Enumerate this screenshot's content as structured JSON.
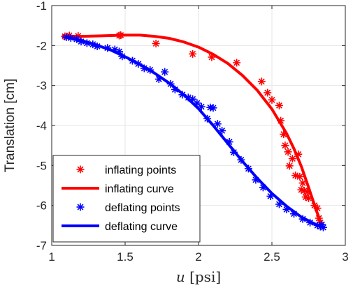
{
  "chart_data": {
    "type": "scatter",
    "xlabel_var": "u",
    "xlabel_unit": "[psi]",
    "ylabel": "Translation [cm]",
    "xlim": [
      1,
      3
    ],
    "ylim": [
      -7,
      -1
    ],
    "xticks": [
      1,
      1.5,
      2,
      2.5,
      3
    ],
    "yticks": [
      -1,
      -2,
      -3,
      -4,
      -5,
      -6,
      -7
    ],
    "xtick_labels": [
      "1",
      "1.5",
      "2",
      "2.5",
      "3"
    ],
    "ytick_labels": [
      "-1",
      "-2",
      "-3",
      "-4",
      "-5",
      "-6",
      "-7"
    ],
    "grid": true,
    "legend_position": "bottom-left",
    "series": [
      {
        "name": "inflating points",
        "kind": "markers",
        "marker": "asterisk",
        "color": "#ff0000",
        "x": [
          1.09,
          1.12,
          1.18,
          1.46,
          1.47,
          1.71,
          1.96,
          2.09,
          2.26,
          2.43,
          2.47,
          2.5,
          2.55,
          2.56,
          2.58,
          2.59,
          2.61,
          2.62,
          2.64,
          2.66,
          2.68,
          2.69,
          2.7,
          2.71,
          2.72,
          2.73,
          2.74,
          2.75,
          2.79,
          2.81,
          2.82,
          2.83
        ],
        "y": [
          -1.77,
          -1.75,
          -1.76,
          -1.75,
          -1.74,
          -1.95,
          -2.21,
          -2.29,
          -2.43,
          -2.9,
          -3.18,
          -3.36,
          -3.5,
          -3.88,
          -4.22,
          -4.5,
          -4.66,
          -5.01,
          -4.83,
          -5.25,
          -4.72,
          -5.28,
          -5.61,
          -5.44,
          -5.63,
          -5.79,
          -5.66,
          -5.82,
          -6.0,
          -6.07,
          -6.32,
          -6.43
        ]
      },
      {
        "name": "inflating curve",
        "kind": "line",
        "color": "#ff0000",
        "x": [
          1.08,
          1.2,
          1.3,
          1.4,
          1.5,
          1.6,
          1.7,
          1.8,
          1.9,
          2.0,
          2.1,
          2.2,
          2.3,
          2.4,
          2.5,
          2.6,
          2.65,
          2.7,
          2.75,
          2.8,
          2.82,
          2.84
        ],
        "y": [
          -1.76,
          -1.77,
          -1.76,
          -1.75,
          -1.74,
          -1.74,
          -1.77,
          -1.82,
          -1.91,
          -2.04,
          -2.22,
          -2.45,
          -2.75,
          -3.12,
          -3.59,
          -4.2,
          -4.58,
          -5.02,
          -5.55,
          -6.1,
          -6.3,
          -6.5
        ]
      },
      {
        "name": "deflating points",
        "kind": "markers",
        "marker": "asterisk",
        "color": "#0000ff",
        "x": [
          1.1,
          1.13,
          1.17,
          1.2,
          1.24,
          1.28,
          1.31,
          1.38,
          1.43,
          1.46,
          1.48,
          1.55,
          1.59,
          1.63,
          1.67,
          1.73,
          1.77,
          1.81,
          1.84,
          1.89,
          1.93,
          1.96,
          1.99,
          2.02,
          2.06,
          2.08,
          2.1,
          2.13,
          2.16,
          2.21,
          2.24,
          2.29,
          2.34,
          2.39,
          2.44,
          2.49,
          2.55,
          2.6,
          2.65,
          2.71,
          2.76,
          2.81,
          2.83,
          2.84,
          2.85
        ],
        "y": [
          -1.79,
          -1.81,
          -1.84,
          -1.9,
          -1.94,
          -1.97,
          -2.02,
          -2.06,
          -2.1,
          -2.15,
          -2.27,
          -2.38,
          -2.46,
          -2.57,
          -2.61,
          -2.84,
          -2.66,
          -2.96,
          -3.1,
          -3.23,
          -3.3,
          -3.34,
          -3.44,
          -3.53,
          -3.83,
          -3.55,
          -3.56,
          -3.96,
          -4.13,
          -4.41,
          -4.67,
          -4.86,
          -5.08,
          -5.36,
          -5.55,
          -5.77,
          -5.97,
          -6.1,
          -6.21,
          -6.34,
          -6.43,
          -6.5,
          -6.53,
          -6.48,
          -6.55
        ]
      },
      {
        "name": "deflating curve",
        "kind": "line",
        "color": "#0000ff",
        "x": [
          1.08,
          1.2,
          1.3,
          1.4,
          1.5,
          1.6,
          1.7,
          1.8,
          1.9,
          2.0,
          2.1,
          2.2,
          2.3,
          2.4,
          2.5,
          2.6,
          2.7,
          2.8,
          2.85
        ],
        "y": [
          -1.78,
          -1.87,
          -1.98,
          -2.11,
          -2.28,
          -2.47,
          -2.69,
          -2.94,
          -3.23,
          -3.58,
          -4.0,
          -4.45,
          -4.9,
          -5.32,
          -5.7,
          -6.02,
          -6.29,
          -6.48,
          -6.55
        ]
      }
    ]
  }
}
